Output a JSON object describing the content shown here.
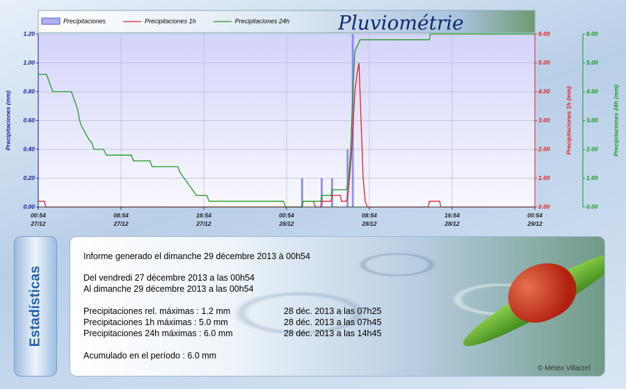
{
  "chart_data": {
    "type": "line",
    "title": "Pluviométrie",
    "legend": "top-left",
    "grid": true,
    "xlim": [
      0,
      48
    ],
    "xticks": [
      {
        "value": 0,
        "label": "00:54\n27/12"
      },
      {
        "value": 8,
        "label": "08:54\n27/12"
      },
      {
        "value": 16,
        "label": "16:54\n27/12"
      },
      {
        "value": 24,
        "label": "00:54\n28/12"
      },
      {
        "value": 32,
        "label": "08:54\n28/12"
      },
      {
        "value": 40,
        "label": "16:54\n28/12"
      },
      {
        "value": 48,
        "label": "00:54\n29/12"
      }
    ],
    "ylabel": "Precipitaciones (mm)",
    "ylim": [
      0,
      1.2
    ],
    "yticks": [
      {
        "value": 0,
        "label": "0.00"
      },
      {
        "value": 0.2,
        "label": "0.20"
      },
      {
        "value": 0.4,
        "label": "0.40"
      },
      {
        "value": 0.6,
        "label": "0.60"
      },
      {
        "value": 0.8,
        "label": "0.80"
      },
      {
        "value": 1,
        "label": "1.00"
      },
      {
        "value": 1.2,
        "label": "1.20"
      }
    ],
    "y2label": "Precipitaciones 1h (mm)",
    "y2lim": [
      0,
      6
    ],
    "y2ticks": [
      {
        "value": 0,
        "label": "0.00"
      },
      {
        "value": 1,
        "label": "1.00"
      },
      {
        "value": 2,
        "label": "2.00"
      },
      {
        "value": 3,
        "label": "3.00"
      },
      {
        "value": 4,
        "label": "4.00"
      },
      {
        "value": 5,
        "label": "5.00"
      },
      {
        "value": 6,
        "label": "6.00"
      }
    ],
    "y3label": "Precipitaciones 24h (mm)",
    "y3lim": [
      0,
      6
    ],
    "y3ticks": [
      {
        "value": 0,
        "label": "0.00"
      },
      {
        "value": 1,
        "label": "1.00"
      },
      {
        "value": 2,
        "label": "2.00"
      },
      {
        "value": 3,
        "label": "3.00"
      },
      {
        "value": 4,
        "label": "4.00"
      },
      {
        "value": 5,
        "label": "5.00"
      },
      {
        "value": 6,
        "label": "6.00"
      }
    ],
    "series": [
      {
        "name": "Precipitaciones",
        "type": "bar",
        "axis": "y",
        "color": "#7b7bf0",
        "x": [
          25.5,
          27.4,
          28.4,
          29.9,
          30.4
        ],
        "values": [
          0.2,
          0.2,
          0.2,
          0.4,
          1.2
        ]
      },
      {
        "name": "Precipitaciones 1h",
        "type": "line",
        "axis": "y2",
        "color": "#e02020",
        "x": [
          0,
          0.6,
          0.7,
          25.5,
          25.6,
          26.6,
          26.8,
          27.3,
          27.4,
          28.3,
          28.4,
          29.2,
          29.3,
          29.8,
          30.0,
          30.3,
          30.6,
          30.8,
          31.0,
          31.2,
          31.4,
          31.6,
          31.8,
          37.7,
          37.8,
          38.8,
          38.9,
          48
        ],
        "values": [
          0.2,
          0.2,
          0,
          0,
          0.2,
          0.2,
          0,
          0,
          0.2,
          0.2,
          0.4,
          0.4,
          0.2,
          0.2,
          0.6,
          2.0,
          4.0,
          4.6,
          5.0,
          3.0,
          1.0,
          0.2,
          0,
          0,
          0.2,
          0.2,
          0,
          0
        ]
      },
      {
        "name": "Precipitaciones 24h",
        "type": "line",
        "axis": "y3",
        "color": "#1a9a1a",
        "x": [
          0,
          0.8,
          1,
          1.2,
          1.4,
          3.2,
          3.4,
          3.6,
          3.8,
          4.0,
          4.2,
          4.5,
          4.8,
          5.2,
          5.4,
          6.3,
          6.6,
          9.0,
          9.2,
          10.8,
          11.0,
          13.5,
          13.7,
          14.1,
          14.5,
          14.9,
          15.3,
          16.3,
          16.5,
          23.7,
          23.9,
          25.5,
          25.6,
          27.3,
          27.4,
          28.3,
          28.4,
          29.8,
          30.0,
          30.2,
          30.4,
          30.6,
          31.1,
          37.8,
          37.9,
          48
        ],
        "values": [
          4.6,
          4.6,
          4.4,
          4.2,
          4.0,
          4.0,
          3.8,
          3.6,
          3.4,
          3.0,
          2.8,
          2.6,
          2.4,
          2.2,
          2.0,
          2.0,
          1.8,
          1.8,
          1.6,
          1.6,
          1.4,
          1.4,
          1.2,
          1.0,
          0.8,
          0.6,
          0.4,
          0.4,
          0.2,
          0.2,
          0,
          0,
          0.2,
          0.2,
          0.4,
          0.4,
          0.6,
          0.6,
          1.0,
          2.0,
          4.0,
          5.4,
          5.8,
          5.8,
          6.0,
          6.0
        ]
      }
    ]
  },
  "panel": {
    "side_label": "Estadísticas",
    "generated": "Informe generado el dimanche 29 décembre 2013 à 00h54",
    "from": "Del vendredi 27 décembre 2013 a las 00h54",
    "to": "Al dimanche 29 décembre 2013 a las 00h54",
    "rows": [
      [
        "Precipitaciones rel. máximas : 1.2 mm",
        "28 déc. 2013 a las 07h25"
      ],
      [
        "Precipitaciones 1h máximas : 5.0 mm",
        "28 déc. 2013 a las 07h45"
      ],
      [
        "Precipitaciones 24h máximas : 6.0 mm",
        "28 déc. 2013 a las 14h45"
      ]
    ],
    "total": "Acumulado en el período : 6.0 mm",
    "copyright": "© Météo Villarzel"
  }
}
